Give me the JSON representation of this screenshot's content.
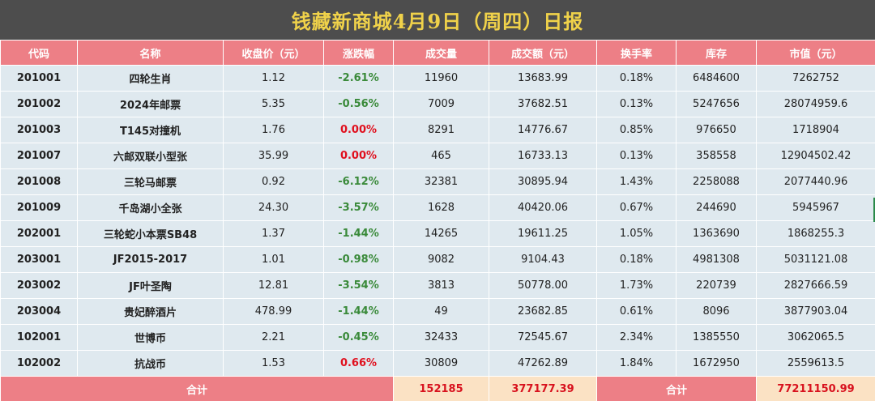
{
  "title": "钱藏新商城4月9日（周四）日报",
  "headers": [
    "代码",
    "名称",
    "收盘价（元）",
    "涨跌幅",
    "成交量",
    "成交额（元）",
    "换手率",
    "库存",
    "市值（元）"
  ],
  "rows": [
    [
      "201001",
      "四轮生肖",
      "1.12",
      "-2.61%",
      "11960",
      "13683.99",
      "0.18%",
      "6484600",
      "7262752"
    ],
    [
      "201002",
      "2024年邮票",
      "5.35",
      "-0.56%",
      "7009",
      "37682.51",
      "0.13%",
      "5247656",
      "28074959.6"
    ],
    [
      "201003",
      "T145对撞机",
      "1.76",
      "0.00%",
      "8291",
      "14776.67",
      "0.85%",
      "976650",
      "1718904"
    ],
    [
      "201007",
      "六邮双联小型张",
      "35.99",
      "0.00%",
      "465",
      "16733.13",
      "0.13%",
      "358558",
      "12904502.42"
    ],
    [
      "201008",
      "三轮马邮票",
      "0.92",
      "-6.12%",
      "32381",
      "30895.94",
      "1.43%",
      "2258088",
      "2077440.96"
    ],
    [
      "201009",
      "千岛湖小全张",
      "24.30",
      "-3.57%",
      "1628",
      "40420.06",
      "0.67%",
      "244690",
      "5945967"
    ],
    [
      "202001",
      "三轮蛇小本票SB48",
      "1.37",
      "-1.44%",
      "14265",
      "19611.25",
      "1.05%",
      "1363690",
      "1868255.3"
    ],
    [
      "203001",
      "JF2015-2017",
      "1.01",
      "-0.98%",
      "9082",
      "9104.43",
      "0.18%",
      "4981308",
      "5031121.08"
    ],
    [
      "203002",
      "JF叶圣陶",
      "12.81",
      "-3.54%",
      "3813",
      "50778.00",
      "1.73%",
      "220739",
      "2827666.59"
    ],
    [
      "203004",
      "贵妃醉酒片",
      "478.99",
      "-1.44%",
      "49",
      "23682.85",
      "0.61%",
      "8096",
      "3877903.04"
    ],
    [
      "102001",
      "世博币",
      "2.21",
      "-0.45%",
      "32433",
      "72545.67",
      "2.34%",
      "1385550",
      "3062065.5"
    ],
    [
      "102002",
      "抗战币",
      "1.53",
      "0.66%",
      "30809",
      "47262.89",
      "1.84%",
      "1672950",
      "2559613.5"
    ]
  ],
  "footer": {
    "label": "合计",
    "volume_total": "152185",
    "amount_total": "377177.39",
    "label2": "合计",
    "market_value_total": "77211150.99"
  },
  "colors": {
    "header_bg": "#ed7f86",
    "row_bg": "#dfe9ef",
    "title_bg": "#4d4d4d",
    "title_text": "#f0d24a",
    "negative": "#3a8a3a",
    "positive_or_zero": "#e0101e",
    "total_bg": "#fbe2c4"
  }
}
